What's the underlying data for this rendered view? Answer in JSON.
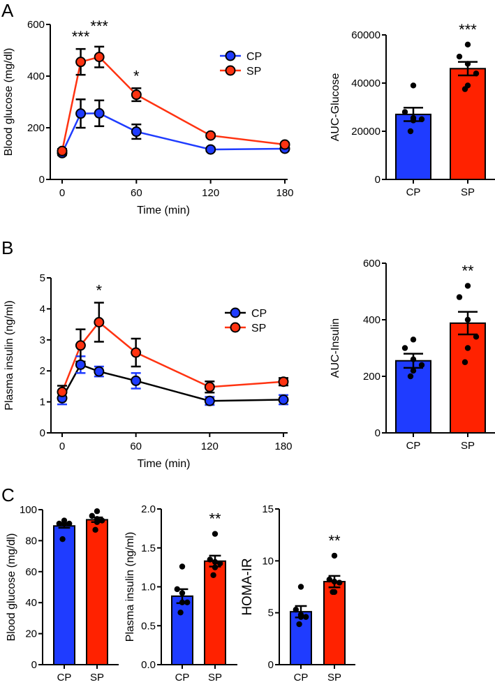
{
  "panel_labels": [
    "A",
    "B",
    "C"
  ],
  "chart_data": [
    {
      "id": "A-line",
      "type": "line",
      "xlabel": "Time (min)",
      "ylabel": "Blood glucose (mg/dl)",
      "xlim": [
        0,
        180
      ],
      "ylim": [
        0,
        600
      ],
      "xticks": [
        0,
        60,
        120,
        180
      ],
      "yticks": [
        0,
        200,
        400,
        600
      ],
      "legend": "top-right",
      "series": [
        {
          "name": "CP",
          "x": [
            0,
            15,
            30,
            60,
            120,
            180
          ],
          "y": [
            102,
            255,
            256,
            185,
            116,
            119
          ],
          "sem": [
            8,
            55,
            50,
            28,
            6,
            6
          ],
          "line_color": "#1f3cff",
          "marker_color": "#1f3cff",
          "error_color": "#000000"
        },
        {
          "name": "SP",
          "x": [
            0,
            15,
            30,
            60,
            120,
            180
          ],
          "y": [
            110,
            455,
            474,
            328,
            170,
            135
          ],
          "sem": [
            8,
            50,
            40,
            25,
            6,
            6
          ],
          "line_color": "#ff3311",
          "marker_color": "#ff3311",
          "error_color": "#000000"
        }
      ],
      "annotations": [
        {
          "x": 15,
          "text": "***"
        },
        {
          "x": 30,
          "text": "***"
        },
        {
          "x": 60,
          "text": "*"
        }
      ]
    },
    {
      "id": "A-bar",
      "type": "bar",
      "ylabel": "AUC-Glucose",
      "ylim": [
        0,
        60000
      ],
      "yticks": [
        0,
        20000,
        40000,
        60000
      ],
      "categories": [
        "CP",
        "SP"
      ],
      "values": [
        27000,
        46000
      ],
      "sem": [
        2800,
        2800
      ],
      "points": [
        [
          39000,
          28000,
          25500,
          25000,
          24500,
          20000
        ],
        [
          56000,
          51000,
          48000,
          44000,
          39000,
          37500
        ]
      ],
      "colors": [
        "#1f3cff",
        "#ff2200"
      ],
      "annotations": [
        {
          "category": "SP",
          "text": "***"
        }
      ]
    },
    {
      "id": "B-line",
      "type": "line",
      "xlabel": "Time (min)",
      "ylabel": "Plasma insulin (ng/ml)",
      "xlim": [
        0,
        180
      ],
      "ylim": [
        0,
        5
      ],
      "xticks": [
        0,
        60,
        120,
        180
      ],
      "yticks": [
        0,
        1,
        2,
        3,
        4,
        5
      ],
      "legend": "top-right",
      "series": [
        {
          "name": "CP",
          "x": [
            0,
            15,
            30,
            60,
            120,
            180
          ],
          "y": [
            1.12,
            2.2,
            1.98,
            1.68,
            1.03,
            1.07
          ],
          "sem": [
            0.2,
            0.27,
            0.16,
            0.25,
            0.13,
            0.15
          ],
          "line_color": "#000000",
          "marker_color": "#1f3cff",
          "error_color": "#1f3cff"
        },
        {
          "name": "SP",
          "x": [
            0,
            15,
            30,
            60,
            120,
            180
          ],
          "y": [
            1.32,
            2.82,
            3.57,
            2.59,
            1.48,
            1.65
          ],
          "sem": [
            0.2,
            0.52,
            0.63,
            0.45,
            0.18,
            0.12
          ],
          "line_color": "#ff3311",
          "marker_color": "#ff3311",
          "error_color": "#000000"
        }
      ],
      "annotations": [
        {
          "x": 30,
          "text": "*"
        }
      ]
    },
    {
      "id": "B-bar",
      "type": "bar",
      "ylabel": "AUC-Insulin",
      "ylim": [
        0,
        600
      ],
      "yticks": [
        0,
        200,
        400,
        600
      ],
      "categories": [
        "CP",
        "SP"
      ],
      "values": [
        255,
        388
      ],
      "sem": [
        25,
        40
      ],
      "points": [
        [
          330,
          300,
          260,
          240,
          220,
          200
        ],
        [
          520,
          480,
          400,
          340,
          300,
          250
        ]
      ],
      "colors": [
        "#1f3cff",
        "#ff2200"
      ],
      "annotations": [
        {
          "category": "SP",
          "text": "**"
        }
      ]
    },
    {
      "id": "C-glucose",
      "type": "bar",
      "ylabel": "Blood glucose (mg/dl)",
      "ylim": [
        0,
        100
      ],
      "yticks": [
        0,
        20,
        40,
        60,
        80,
        100
      ],
      "categories": [
        "CP",
        "SP"
      ],
      "values": [
        89.5,
        93.5
      ],
      "sem": [
        1.2,
        1.5
      ],
      "points": [
        [
          93,
          91,
          91,
          91,
          91,
          81
        ],
        [
          99,
          96,
          94,
          93,
          92,
          87
        ]
      ],
      "colors": [
        "#1f3cff",
        "#ff2200"
      ],
      "annotations": []
    },
    {
      "id": "C-insulin",
      "type": "bar",
      "ylabel": "Plasma insulin (ng/ml)",
      "ylim": [
        0,
        2.0
      ],
      "yticks": [
        "0.0",
        "0.5",
        "1.0",
        "1.5",
        "2.0"
      ],
      "categories": [
        "CP",
        "SP"
      ],
      "values": [
        0.88,
        1.33
      ],
      "sem": [
        0.09,
        0.07
      ],
      "points": [
        [
          1.26,
          0.97,
          0.92,
          0.8,
          0.8,
          0.67
        ],
        [
          1.68,
          1.35,
          1.32,
          1.3,
          1.25,
          1.15
        ]
      ],
      "colors": [
        "#1f3cff",
        "#ff2200"
      ],
      "annotations": [
        {
          "category": "SP",
          "text": "**"
        }
      ]
    },
    {
      "id": "C-homa",
      "type": "bar",
      "ylabel": "HOMA-IR",
      "ylim": [
        0,
        15
      ],
      "yticks": [
        0,
        5,
        10,
        15
      ],
      "categories": [
        "CP",
        "SP"
      ],
      "values": [
        5.1,
        8.0
      ],
      "sem": [
        0.55,
        0.55
      ],
      "points": [
        [
          7.5,
          5.3,
          4.8,
          4.6,
          4.6,
          3.9
        ],
        [
          10.5,
          8.2,
          8.0,
          7.9,
          7.0,
          7.0
        ]
      ],
      "colors": [
        "#1f3cff",
        "#ff2200"
      ],
      "annotations": [
        {
          "category": "SP",
          "text": "**"
        }
      ]
    }
  ]
}
